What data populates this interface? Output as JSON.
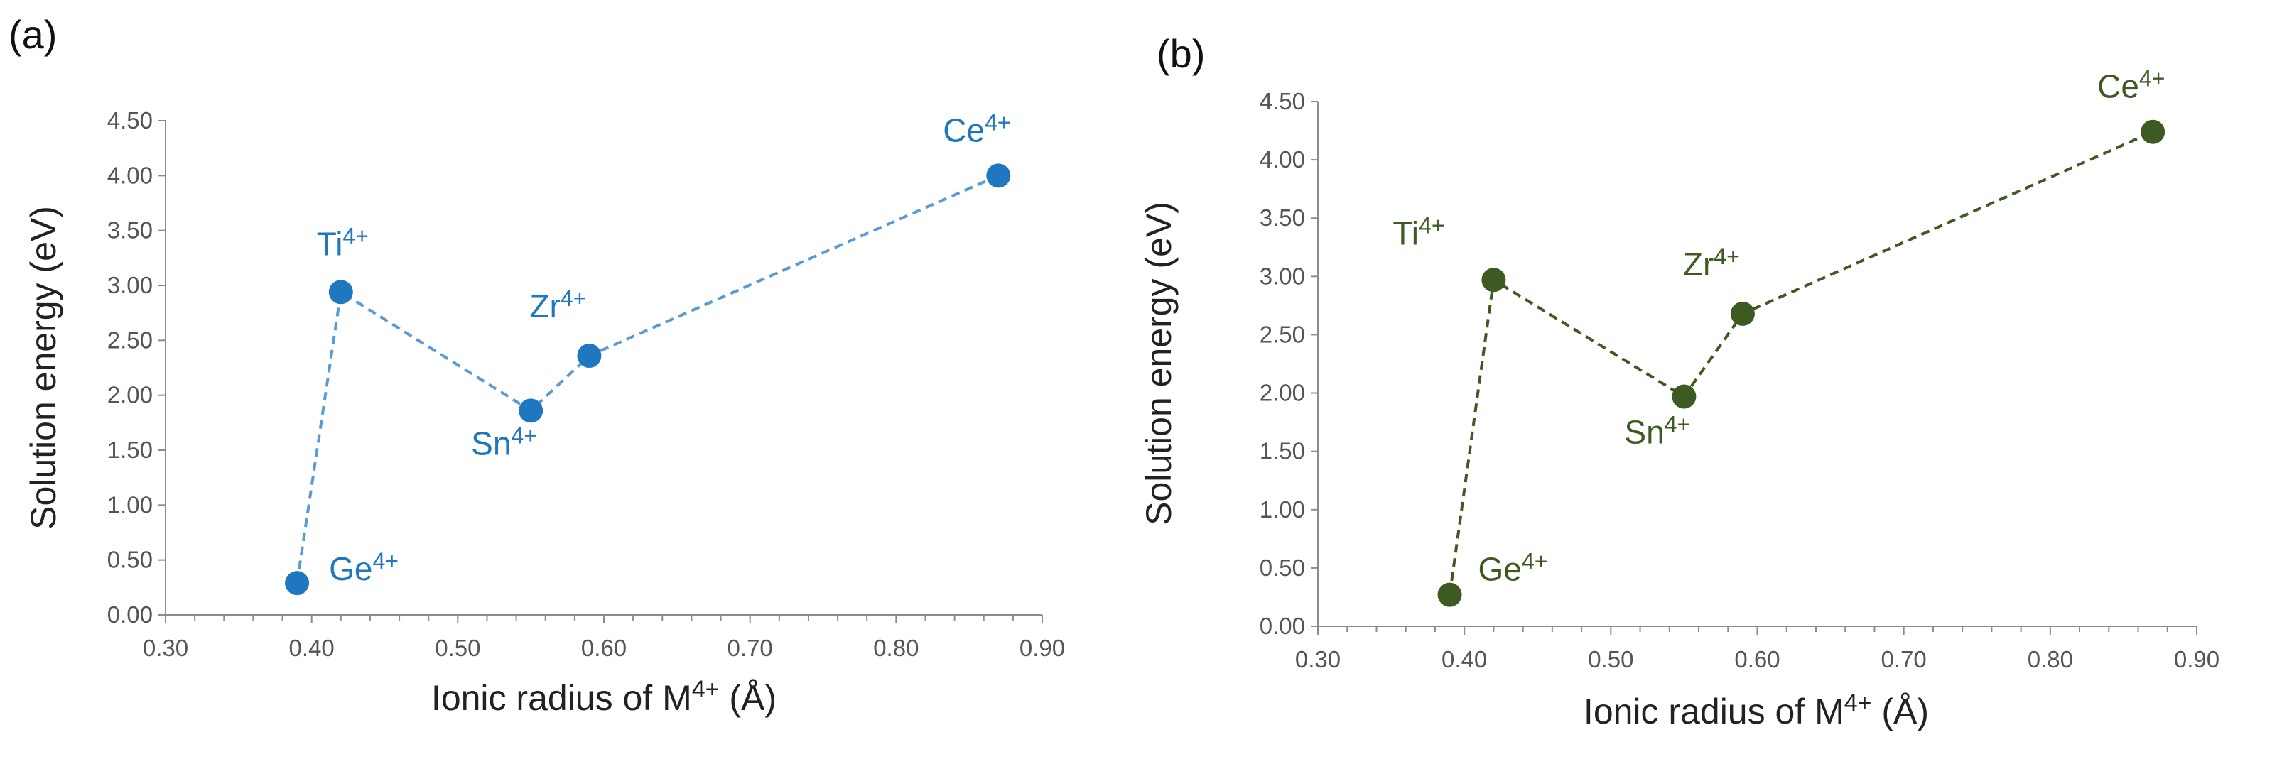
{
  "chart_data": [
    {
      "type": "line",
      "panel_label": "(a)",
      "xlabel_prefix": "Ionic radius of M",
      "xlabel_sup": "4+",
      "xlabel_suffix": " (Å)",
      "ylabel": "Solution energy (eV)",
      "xlim": [
        0.3,
        0.9
      ],
      "ylim": [
        0.0,
        4.5
      ],
      "x_ticks": [
        "0.30",
        "0.40",
        "0.50",
        "0.60",
        "0.70",
        "0.80",
        "0.90"
      ],
      "y_ticks": [
        "0.00",
        "0.50",
        "1.00",
        "1.50",
        "2.00",
        "2.50",
        "3.00",
        "3.50",
        "4.00",
        "4.50"
      ],
      "line_style": "dashed",
      "color": "#1f77bf",
      "line_color": "#5b9bd5",
      "grid": false,
      "points": [
        {
          "label": "Ge",
          "sup": "4+",
          "x": 0.39,
          "y": 0.29
        },
        {
          "label": "Ti",
          "sup": "4+",
          "x": 0.42,
          "y": 2.94
        },
        {
          "label": "Sn",
          "sup": "4+",
          "x": 0.55,
          "y": 1.86
        },
        {
          "label": "Zr",
          "sup": "4+",
          "x": 0.59,
          "y": 2.36
        },
        {
          "label": "Ce",
          "sup": "4+",
          "x": 0.87,
          "y": 4.0
        }
      ]
    },
    {
      "type": "line",
      "panel_label": "(b)",
      "xlabel_prefix": "Ionic radius of M",
      "xlabel_sup": "4+",
      "xlabel_suffix": " (Å)",
      "ylabel": "Solution energy (eV)",
      "xlim": [
        0.3,
        0.9
      ],
      "ylim": [
        0.0,
        4.5
      ],
      "x_ticks": [
        "0.30",
        "0.40",
        "0.50",
        "0.60",
        "0.70",
        "0.80",
        "0.90"
      ],
      "y_ticks": [
        "0.00",
        "0.50",
        "1.00",
        "1.50",
        "2.00",
        "2.50",
        "3.00",
        "3.50",
        "4.00",
        "4.50"
      ],
      "line_style": "dashed",
      "color": "#3d5a22",
      "line_color": "#3d5a22",
      "grid": false,
      "points": [
        {
          "label": "Ge",
          "sup": "4+",
          "x": 0.39,
          "y": 0.27
        },
        {
          "label": "Ti",
          "sup": "4+",
          "x": 0.42,
          "y": 2.97
        },
        {
          "label": "Sn",
          "sup": "4+",
          "x": 0.55,
          "y": 1.97
        },
        {
          "label": "Zr",
          "sup": "4+",
          "x": 0.59,
          "y": 2.68
        },
        {
          "label": "Ce",
          "sup": "4+",
          "x": 0.87,
          "y": 4.24
        }
      ]
    }
  ]
}
